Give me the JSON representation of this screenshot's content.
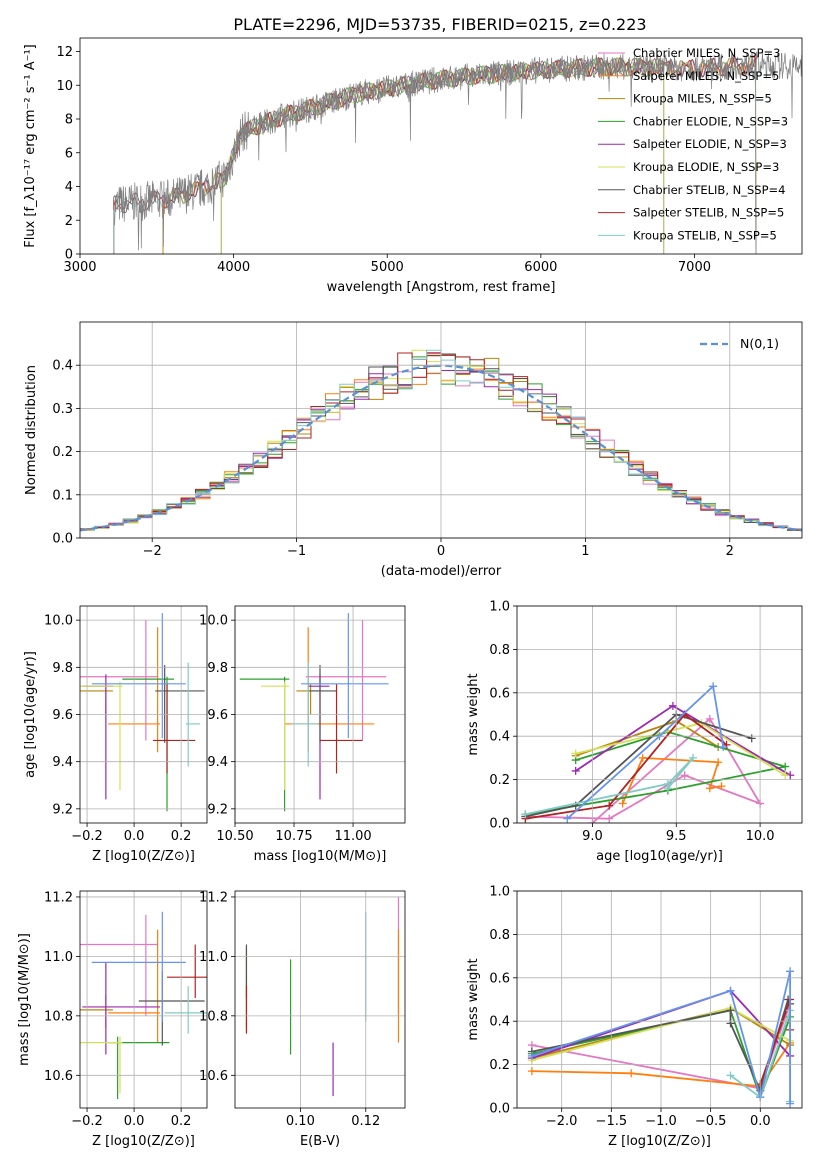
{
  "figure_title": "PLATE=2296, MJD=53735, FIBERID=0215, z=0.223",
  "colors": [
    "#e377c2",
    "#ff7f0e",
    "#b8860b",
    "#2ca02c",
    "#9c27b0",
    "#d4e157",
    "#555555",
    "#b22222",
    "#80cbc4"
  ],
  "chart_data": [
    {
      "id": "spectrum",
      "type": "line",
      "title": "PLATE=2296, MJD=53735, FIBERID=0215, z=0.223",
      "xlabel": "wavelength [Angstrom, rest frame]",
      "ylabel": "Flux [f_λ10⁻¹⁷ erg cm⁻² s⁻¹ A⁻¹]",
      "xlim": [
        3000,
        7700
      ],
      "ylim": [
        0,
        12.8
      ],
      "xticks": [
        "3000",
        "4000",
        "5000",
        "6000",
        "7000"
      ],
      "yticks": [
        "0",
        "2",
        "4",
        "6",
        "8",
        "10",
        "12"
      ],
      "legend": "right",
      "legend_entries": [
        "Chabrier MILES, N_SSP=3",
        "Salpeter MILES, N_SSP=5",
        "Kroupa MILES, N_SSP=5",
        "Chabrier ELODIE, N_SSP=3",
        "Salpeter ELODIE, N_SSP=3",
        "Kroupa ELODIE, N_SSP=3",
        "Chabrier STELIB, N_SSP=4",
        "Salpeter STELIB, N_SSP=5",
        "Kroupa STELIB, N_SSP=5"
      ],
      "model_start_wavelength": [
        3540,
        3540,
        3540,
        3920,
        3920,
        3920,
        3220,
        3220,
        3220
      ],
      "model_end_wavelength": [
        7400,
        7400,
        7400,
        6800,
        6800,
        6800,
        7400,
        7400,
        7400
      ],
      "continuum": {
        "x": [
          3220,
          3400,
          3600,
          3800,
          3950,
          4050,
          4300,
          4600,
          4800,
          5000,
          5300,
          5600,
          6000,
          6400,
          7000,
          7400,
          7700
        ],
        "y": [
          2.9,
          3.1,
          3.3,
          3.9,
          4.6,
          7.2,
          8.1,
          8.9,
          9.5,
          9.8,
          10.3,
          10.6,
          10.9,
          11.1,
          11.0,
          11.2,
          11.1
        ]
      }
    },
    {
      "id": "residuals",
      "type": "histogram",
      "xlabel": "(data-model)/error",
      "ylabel": "Normed distribution",
      "xlim": [
        -2.5,
        2.5
      ],
      "ylim": [
        0,
        0.5
      ],
      "xticks": [
        "−2",
        "−1",
        "0",
        "1",
        "2"
      ],
      "yticks": [
        "0.0",
        "0.1",
        "0.2",
        "0.3",
        "0.4"
      ],
      "grid": true,
      "legend": "top-right",
      "legend_entries": [
        "N(0,1)"
      ],
      "bin_width": 0.1
    },
    {
      "id": "age_vs_Z",
      "type": "errorbar",
      "xlabel": "Z [log10(Z/Z⊙)]",
      "ylabel": "age [log10(age/yr)]",
      "xlim": [
        -0.23,
        0.31
      ],
      "ylim": [
        9.14,
        10.06
      ],
      "xticks": [
        "−0.2",
        "0.0",
        "0.2"
      ],
      "yticks": [
        "9.2",
        "9.4",
        "9.6",
        "9.8",
        "10.0"
      ],
      "points": [
        {
          "x": 0.05,
          "xerr": [
            0.29,
            0.05
          ],
          "y": 9.76,
          "yerr": [
            0.27,
            0.24
          ]
        },
        {
          "x": 0.1,
          "xerr": [
            0.21,
            0.01
          ],
          "y": 9.56,
          "yerr": [
            0.12,
            0.41
          ]
        },
        {
          "x": -0.12,
          "xerr": [
            0.18,
            0.03
          ],
          "y": 9.7,
          "yerr": [
            0.1,
            0.03
          ]
        },
        {
          "x": 0.14,
          "xerr": [
            0.19,
            0.03
          ],
          "y": 9.75,
          "yerr": [
            0.56,
            0.01
          ]
        },
        {
          "x": -0.12,
          "xerr": [
            0.1,
            0.03
          ],
          "y": 9.72,
          "yerr": [
            0.48,
            0.05
          ]
        },
        {
          "x": -0.06,
          "xerr": [
            0.17,
            0.01
          ],
          "y": 9.72,
          "yerr": [
            0.44,
            0.02
          ]
        },
        {
          "x": 0.13,
          "xerr": [
            0.04,
            0.17
          ],
          "y": 9.7,
          "yerr": [
            0.22,
            0.11
          ]
        },
        {
          "x": 0.14,
          "xerr": [
            0.06,
            0.12
          ],
          "y": 9.49,
          "yerr": [
            0.14,
            0.24
          ]
        },
        {
          "x": 0.23,
          "xerr": [
            0.01,
            0.05
          ],
          "y": 9.56,
          "yerr": [
            0.18,
            0.26
          ]
        },
        {
          "x": 0.12,
          "xerr": [
            0.3,
            0.1
          ],
          "y": 9.73,
          "yerr": [
            0.23,
            0.3
          ]
        }
      ]
    },
    {
      "id": "age_vs_mass",
      "type": "errorbar",
      "xlabel": "mass [log10(M/M⊙)]",
      "ylabel": "",
      "xlim": [
        10.5,
        11.22
      ],
      "ylim": [
        9.14,
        10.06
      ],
      "xticks": [
        "10.50",
        "10.75",
        "11.00"
      ],
      "yticks": [
        "9.2",
        "9.4",
        "9.6",
        "9.8",
        "10.0"
      ],
      "points": [
        {
          "x": 11.04,
          "xerr": [
            0.24,
            0.1
          ],
          "y": 9.76,
          "yerr": [
            0.27,
            0.24
          ]
        },
        {
          "x": 10.81,
          "xerr": [
            0.1,
            0.28
          ],
          "y": 9.56,
          "yerr": [
            0.12,
            0.41
          ]
        },
        {
          "x": 10.82,
          "xerr": [
            0.06,
            0.05
          ],
          "y": 9.7,
          "yerr": [
            0.1,
            0.03
          ]
        },
        {
          "x": 10.71,
          "xerr": [
            0.19,
            0.02
          ],
          "y": 9.75,
          "yerr": [
            0.56,
            0.01
          ]
        },
        {
          "x": 10.86,
          "xerr": [
            0.05,
            0.04
          ],
          "y": 9.72,
          "yerr": [
            0.48,
            0.05
          ]
        },
        {
          "x": 10.71,
          "xerr": [
            0.1,
            0.02
          ],
          "y": 9.72,
          "yerr": [
            0.44,
            0.02
          ]
        },
        {
          "x": 10.86,
          "xerr": [
            0.05,
            0.07
          ],
          "y": 9.7,
          "yerr": [
            0.22,
            0.11
          ]
        },
        {
          "x": 10.93,
          "xerr": [
            0.07,
            0.11
          ],
          "y": 9.49,
          "yerr": [
            0.14,
            0.24
          ]
        },
        {
          "x": 10.81,
          "xerr": [
            0.07,
            0.04
          ],
          "y": 9.56,
          "yerr": [
            0.18,
            0.26
          ]
        },
        {
          "x": 10.98,
          "xerr": [
            0.2,
            0.17
          ],
          "y": 9.73,
          "yerr": [
            0.23,
            0.3
          ]
        }
      ]
    },
    {
      "id": "weight_vs_age",
      "type": "line",
      "xlabel": "age [log10(age/yr)]",
      "ylabel": "mass weight",
      "xlim": [
        8.55,
        10.25
      ],
      "ylim": [
        0,
        1.0
      ],
      "xticks": [
        "9.0",
        "9.5",
        "10.0"
      ],
      "yticks": [
        "0.0",
        "0.2",
        "0.4",
        "0.6",
        "0.8",
        "1.0"
      ],
      "grid": true,
      "series": [
        {
          "x": [
            9.0,
            9.7,
            10.0,
            9.55,
            9.1,
            8.6
          ],
          "y": [
            0.0,
            0.48,
            0.09,
            0.22,
            0.02,
            0.03
          ]
        },
        {
          "x": [
            9.18,
            9.3,
            9.75,
            9.7,
            9.77
          ],
          "y": [
            0.09,
            0.3,
            0.28,
            0.16,
            0.17
          ]
        },
        {
          "x": [
            8.9,
            9.5,
            9.75
          ],
          "y": [
            0.31,
            0.47,
            0.35
          ]
        },
        {
          "x": [
            8.9,
            9.45,
            10.15,
            9.45,
            8.6
          ],
          "y": [
            0.29,
            0.42,
            0.26,
            0.15,
            0.04
          ]
        },
        {
          "x": [
            8.9,
            9.48,
            10.18
          ],
          "y": [
            0.24,
            0.54,
            0.22
          ]
        },
        {
          "x": [
            8.9,
            9.65,
            10.15
          ],
          "y": [
            0.32,
            0.46,
            0.22
          ]
        },
        {
          "x": [
            8.6,
            8.9,
            9.5,
            9.95
          ],
          "y": [
            0.03,
            0.08,
            0.5,
            0.39
          ]
        },
        {
          "x": [
            8.6,
            9.1,
            9.55,
            9.8
          ],
          "y": [
            0.02,
            0.08,
            0.5,
            0.36
          ]
        },
        {
          "x": [
            8.6,
            9.45,
            9.6,
            9.45
          ],
          "y": [
            0.04,
            0.18,
            0.3,
            0.16
          ]
        },
        {
          "x": [
            8.85,
            9.4,
            9.72,
            9.78
          ],
          "y": [
            0.02,
            0.4,
            0.63,
            0.35
          ]
        }
      ]
    },
    {
      "id": "mass_vs_Z",
      "type": "errorbar",
      "xlabel": "Z [log10(Z/Z⊙)]",
      "ylabel": "mass [log10(M/M⊙)]",
      "xlim": [
        -0.23,
        0.31
      ],
      "ylim": [
        10.49,
        11.22
      ],
      "xticks": [
        "−0.2",
        "0.0",
        "0.2"
      ],
      "yticks": [
        "10.6",
        "10.8",
        "11.0",
        "11.2"
      ],
      "points": [
        {
          "x": 0.05,
          "xerr": [
            0.29,
            0.05
          ],
          "y": 11.04,
          "yerr": [
            0.24,
            0.1
          ]
        },
        {
          "x": 0.1,
          "xerr": [
            0.21,
            0.01
          ],
          "y": 10.81,
          "yerr": [
            0.1,
            0.28
          ]
        },
        {
          "x": -0.12,
          "xerr": [
            0.18,
            0.03
          ],
          "y": 10.82,
          "yerr": [
            0.06,
            0.05
          ]
        },
        {
          "x": -0.07,
          "xerr": [
            0.04,
            0.22
          ],
          "y": 10.71,
          "yerr": [
            0.19,
            0.02
          ]
        },
        {
          "x": -0.12,
          "xerr": [
            0.1,
            0.23
          ],
          "y": 10.83,
          "yerr": [
            0.16,
            0.15
          ]
        },
        {
          "x": -0.06,
          "xerr": [
            0.17,
            0.01
          ],
          "y": 10.71,
          "yerr": [
            0.17,
            0.02
          ]
        },
        {
          "x": 0.12,
          "xerr": [
            0.1,
            0.18
          ],
          "y": 10.85,
          "yerr": [
            0.15,
            0.1
          ]
        },
        {
          "x": 0.26,
          "xerr": [
            0.12,
            0.05
          ],
          "y": 10.93,
          "yerr": [
            0.07,
            0.11
          ]
        },
        {
          "x": 0.23,
          "xerr": [
            0.1,
            0.08
          ],
          "y": 10.81,
          "yerr": [
            0.07,
            0.09
          ]
        },
        {
          "x": 0.12,
          "xerr": [
            0.3,
            0.1
          ],
          "y": 10.98,
          "yerr": [
            0.2,
            0.17
          ]
        }
      ]
    },
    {
      "id": "mass_vs_EBV",
      "type": "errorbar",
      "xlabel": "E(B-V)",
      "ylabel": "",
      "xlim": [
        0.08,
        0.132
      ],
      "ylim": [
        10.49,
        11.22
      ],
      "xticks": [
        "0.10",
        "0.12"
      ],
      "yticks": [
        "10.6",
        "10.8",
        "11.0",
        "11.2"
      ],
      "points": [
        {
          "x": 0.13,
          "y": 11.04,
          "yerr": [
            0.24,
            0.16
          ]
        },
        {
          "x": 0.13,
          "y": 10.81,
          "yerr": [
            0.1,
            0.28
          ]
        },
        {
          "x": 0.0835,
          "y": 10.82,
          "yerr": [
            0.06,
            0.21
          ]
        },
        {
          "x": 0.097,
          "y": 10.83,
          "yerr": [
            0.16,
            0.16
          ]
        },
        {
          "x": 0.11,
          "y": 10.62,
          "yerr": [
            0.09,
            0.09
          ]
        },
        {
          "x": 0.0835,
          "y": 10.85,
          "yerr": [
            0.1,
            0.09
          ]
        },
        {
          "x": 0.0835,
          "y": 10.93,
          "yerr": [
            0.07,
            0.11
          ]
        },
        {
          "x": 0.0835,
          "y": 10.81,
          "yerr": [
            0.07,
            0.09
          ]
        },
        {
          "x": 0.12,
          "y": 10.98,
          "yerr": [
            0.2,
            0.17
          ]
        }
      ]
    },
    {
      "id": "weight_vs_Z",
      "type": "line",
      "xlabel": "Z [log10(Z/Z⊙)]",
      "ylabel": "mass weight",
      "xlim": [
        -2.45,
        0.42
      ],
      "ylim": [
        0,
        1.0
      ],
      "xticks": [
        "−2.0",
        "−1.5",
        "−1.0",
        "−0.5",
        "0.0"
      ],
      "yticks": [
        "0.0",
        "0.2",
        "0.4",
        "0.6",
        "0.8",
        "1.0"
      ],
      "grid": true,
      "series": [
        {
          "x": [
            -2.3,
            0.0,
            0.3
          ],
          "y": [
            0.29,
            0.09,
            0.48
          ]
        },
        {
          "x": [
            -2.3,
            -1.3,
            0.0,
            0.3
          ],
          "y": [
            0.17,
            0.16,
            0.1,
            0.3
          ]
        },
        {
          "x": [
            -2.3,
            -0.3,
            0.3
          ],
          "y": [
            0.23,
            0.46,
            0.29
          ]
        },
        {
          "x": [
            -2.3,
            -0.3,
            0.0,
            0.3
          ],
          "y": [
            0.25,
            0.45,
            0.05,
            0.42
          ]
        },
        {
          "x": [
            -2.3,
            -0.3,
            0.3
          ],
          "y": [
            0.23,
            0.54,
            0.24
          ]
        },
        {
          "x": [
            -2.3,
            -0.3,
            0.3
          ],
          "y": [
            0.22,
            0.46,
            0.31
          ]
        },
        {
          "x": [
            -2.3,
            -0.3,
            -0.3,
            0.0,
            0.28,
            0.3
          ],
          "y": [
            0.26,
            0.45,
            0.39,
            0.08,
            0.5,
            0.48
          ]
        },
        {
          "x": [
            0.0,
            0.3,
            0.3
          ],
          "y": [
            0.11,
            0.5,
            0.36
          ]
        },
        {
          "x": [
            -0.3,
            0.0,
            0.3,
            0.3
          ],
          "y": [
            0.15,
            0.05,
            0.45,
            0.03
          ]
        },
        {
          "x": [
            -2.3,
            -0.3,
            0.0,
            0.3,
            0.3
          ],
          "y": [
            0.24,
            0.54,
            0.05,
            0.63,
            0.02
          ]
        }
      ]
    }
  ]
}
